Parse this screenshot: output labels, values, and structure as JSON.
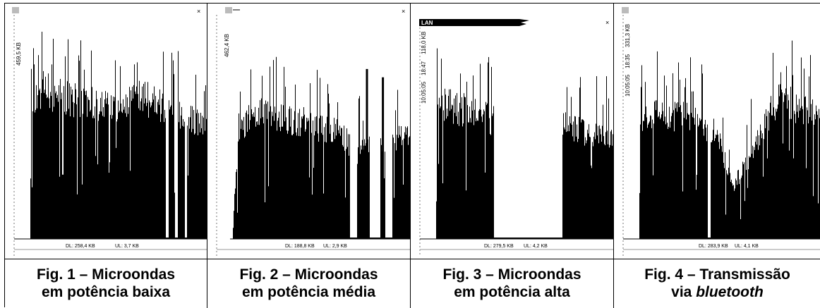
{
  "chart_data": [
    {
      "type": "area",
      "peak_label": "459,5 KB",
      "footer": {
        "dl": "DL: 258,4 KB",
        "ul": "UL: 3,7 KB"
      },
      "traffic_profile": [
        [
          0,
          0.7
        ],
        [
          0.06,
          0.78
        ],
        [
          0.25,
          0.72
        ],
        [
          0.45,
          0.68
        ],
        [
          0.65,
          0.74
        ],
        [
          0.85,
          0.64
        ],
        [
          1,
          0.58
        ]
      ],
      "dropouts": [
        [
          0.765,
          0.78
        ],
        [
          0.82,
          0.835
        ],
        [
          0.875,
          0.885
        ]
      ],
      "caption": {
        "line1": "Fig. 1 – Microondas",
        "line2": "em potência baixa"
      }
    },
    {
      "type": "area",
      "peak_label": "462,4 KB",
      "footer": {
        "dl": "DL: 188,8 KB",
        "ul": "UL: 2,9 KB"
      },
      "traffic_profile": [
        [
          0,
          0.1
        ],
        [
          0.03,
          0.58
        ],
        [
          0.15,
          0.66
        ],
        [
          0.35,
          0.62
        ],
        [
          0.5,
          0.58
        ],
        [
          0.6,
          0.55
        ],
        [
          0.7,
          0.45
        ],
        [
          1,
          0.55
        ]
      ],
      "dropouts": [
        [
          0.66,
          0.7
        ],
        [
          0.77,
          0.83
        ],
        [
          0.86,
          0.9
        ]
      ],
      "spikes": [
        [
          0.715,
          0.35
        ],
        [
          0.742,
          0.45
        ],
        [
          0.755,
          0.82
        ],
        [
          0.845,
          0.78
        ]
      ],
      "caption": {
        "line1": "Fig. 2 – Microondas",
        "line2": "em potência média"
      }
    },
    {
      "type": "area",
      "window_label": "LAN",
      "peak_label": "118,0 KB",
      "time_labels": [
        "18:47",
        "10:05:05"
      ],
      "footer": {
        "dl": "DL: 279,5 KB",
        "ul": "UL: 4,2 KB"
      },
      "traffic_profile": [
        [
          0,
          0.72
        ],
        [
          0.05,
          0.7
        ],
        [
          0.2,
          0.66
        ],
        [
          0.32,
          0.62
        ],
        [
          0.7,
          0.6
        ],
        [
          0.85,
          0.55
        ],
        [
          1,
          0.52
        ]
      ],
      "dropouts": [
        [
          0.325,
          0.71
        ]
      ],
      "caption": {
        "line1": "Fig. 3 – Microondas",
        "line2": "em potência alta"
      }
    },
    {
      "type": "area",
      "peak_label": "331,3 KB",
      "time_labels": [
        "18:35",
        "10:05:05"
      ],
      "footer": {
        "dl": "DL: 283,9 KB",
        "ul": "UL: 4,1 KB"
      },
      "traffic_profile": [
        [
          0,
          0.6
        ],
        [
          0.1,
          0.66
        ],
        [
          0.3,
          0.62
        ],
        [
          0.42,
          0.55
        ],
        [
          0.52,
          0.28
        ],
        [
          0.62,
          0.45
        ],
        [
          0.75,
          0.72
        ],
        [
          1,
          0.66
        ]
      ],
      "dropouts": [
        [
          0.375,
          0.392
        ]
      ],
      "caption": {
        "line1": "Fig. 4 – Transmissão",
        "line2_prefix": "via ",
        "line2_em": "bluetooth"
      }
    }
  ]
}
